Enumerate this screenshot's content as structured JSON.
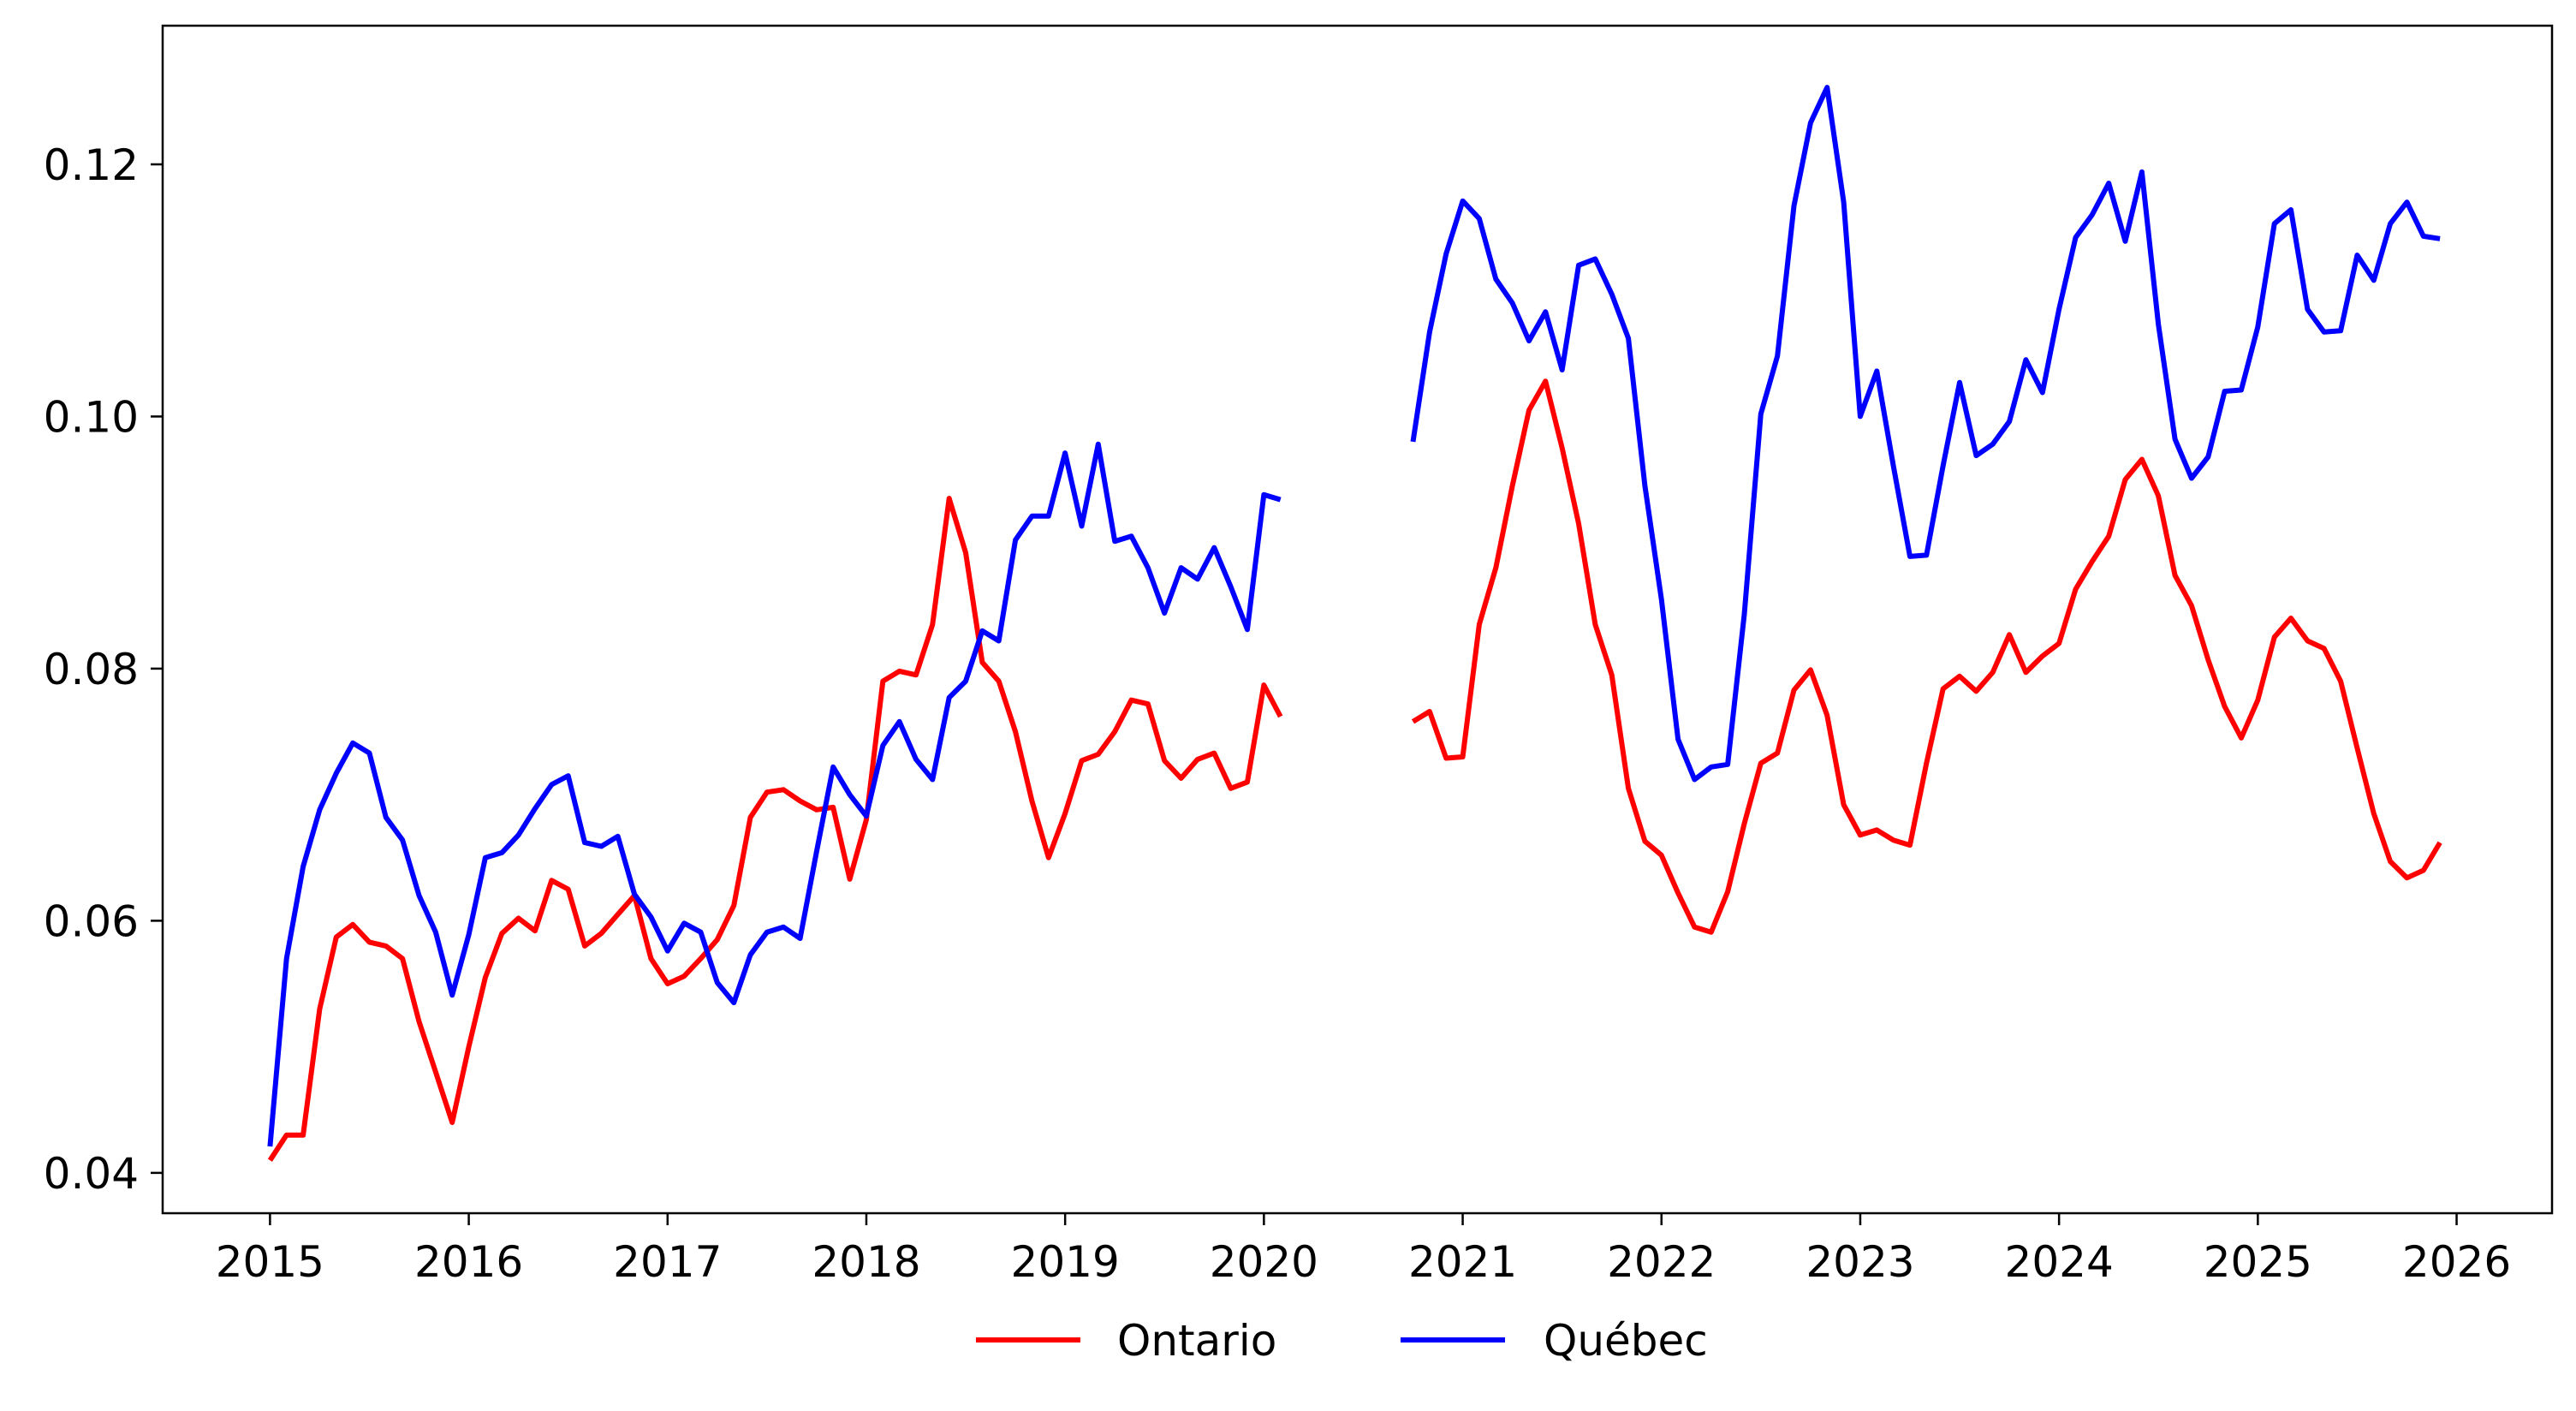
{
  "chart_data": {
    "type": "line",
    "title": "",
    "xlabel": "",
    "ylabel": "",
    "xlim": [
      2014.46,
      2026.48
    ],
    "ylim": [
      0.0368,
      0.131
    ],
    "grid": false,
    "legend_position": "bottom-center",
    "x_ticks": [
      2015,
      2016,
      2017,
      2018,
      2019,
      2020,
      2021,
      2022,
      2023,
      2024,
      2025,
      2026
    ],
    "x_tick_labels": [
      "2015",
      "2016",
      "2017",
      "2018",
      "2019",
      "2020",
      "2021",
      "2022",
      "2023",
      "2024",
      "2025",
      "2026"
    ],
    "y_ticks": [
      0.04,
      0.06,
      0.08,
      0.1,
      0.12
    ],
    "y_tick_labels": [
      "0.04",
      "0.06",
      "0.08",
      "0.10",
      "0.12"
    ],
    "series": [
      {
        "name": "Ontario",
        "color": "#ff0000",
        "segments": [
          {
            "start": 2015.0,
            "step": 0.08333,
            "values": [
              0.041,
              0.043,
              0.043,
              0.053,
              0.0587,
              0.0597,
              0.0583,
              0.058,
              0.057,
              0.052,
              0.048,
              0.044,
              0.05,
              0.0555,
              0.059,
              0.0602,
              0.0592,
              0.0632,
              0.0625,
              0.058,
              0.059,
              0.0605,
              0.062,
              0.057,
              0.055,
              0.0556,
              0.057,
              0.0585,
              0.0612,
              0.0682,
              0.0702,
              0.0704,
              0.0695,
              0.0688,
              0.069,
              0.0633,
              0.068,
              0.079,
              0.0798,
              0.0795,
              0.0835,
              0.0935,
              0.0892,
              0.0805,
              0.079,
              0.075,
              0.0695,
              0.065,
              0.0685,
              0.0727,
              0.0732,
              0.075,
              0.0775,
              0.0772,
              0.0727,
              0.0713,
              0.0728,
              0.0733,
              0.0705,
              0.071,
              0.0787,
              0.0762
            ]
          },
          {
            "start": 2020.75,
            "step": 0.08333,
            "values": [
              0.0758,
              0.0766,
              0.0729,
              0.073,
              0.0835,
              0.088,
              0.0945,
              0.1005,
              0.1028,
              0.0975,
              0.0915,
              0.0835,
              0.0795,
              0.0705,
              0.0663,
              0.0652,
              0.0622,
              0.0595,
              0.0591,
              0.0623,
              0.0677,
              0.0725,
              0.0733,
              0.0783,
              0.0799,
              0.0763,
              0.0692,
              0.0668,
              0.0672,
              0.0664,
              0.066,
              0.0725,
              0.0784,
              0.0794,
              0.0782,
              0.0797,
              0.0827,
              0.0797,
              0.081,
              0.082,
              0.0863,
              0.0885,
              0.0905,
              0.095,
              0.0966,
              0.0937,
              0.0874,
              0.085,
              0.0807,
              0.077,
              0.0745,
              0.0775,
              0.0825,
              0.084,
              0.0822,
              0.0816,
              0.079,
              0.0737,
              0.0685,
              0.0647,
              0.0634,
              0.064,
              0.0662
            ]
          }
        ]
      },
      {
        "name": "Québec",
        "color": "#0000ff",
        "segments": [
          {
            "start": 2015.0,
            "step": 0.08333,
            "values": [
              0.0421,
              0.057,
              0.0643,
              0.0688,
              0.0717,
              0.0741,
              0.0733,
              0.0682,
              0.0664,
              0.062,
              0.0591,
              0.0541,
              0.0589,
              0.065,
              0.0654,
              0.0668,
              0.0689,
              0.0708,
              0.0715,
              0.0662,
              0.0659,
              0.0667,
              0.0621,
              0.0603,
              0.0576,
              0.0598,
              0.0591,
              0.0551,
              0.0535,
              0.0573,
              0.0591,
              0.0595,
              0.0586,
              0.0655,
              0.0722,
              0.07,
              0.0683,
              0.0739,
              0.0758,
              0.0728,
              0.0712,
              0.0777,
              0.079,
              0.083,
              0.0822,
              0.0902,
              0.0921,
              0.0921,
              0.0971,
              0.0913,
              0.0978,
              0.0901,
              0.0905,
              0.088,
              0.0844,
              0.088,
              0.0871,
              0.0896,
              0.0865,
              0.0831,
              0.0938,
              0.0934
            ]
          },
          {
            "start": 2020.75,
            "step": 0.08333,
            "values": [
              0.098,
              0.1067,
              0.1129,
              0.1171,
              0.1157,
              0.1109,
              0.109,
              0.106,
              0.1083,
              0.1037,
              0.112,
              0.1125,
              0.1097,
              0.1062,
              0.0945,
              0.0855,
              0.0744,
              0.0712,
              0.0722,
              0.0724,
              0.0843,
              0.1002,
              0.1048,
              0.1167,
              0.1233,
              0.1261,
              0.117,
              0.1,
              0.1036,
              0.0961,
              0.0889,
              0.089,
              0.0961,
              0.1027,
              0.0969,
              0.0978,
              0.0996,
              0.1045,
              0.1019,
              0.1085,
              0.1142,
              0.116,
              0.1185,
              0.1139,
              0.1194,
              0.1073,
              0.0982,
              0.0951,
              0.0968,
              0.102,
              0.1021,
              0.1071,
              0.1153,
              0.1164,
              0.1085,
              0.1067,
              0.1068,
              0.1128,
              0.1108,
              0.1153,
              0.117,
              0.1143,
              0.1141
            ]
          }
        ]
      }
    ]
  }
}
